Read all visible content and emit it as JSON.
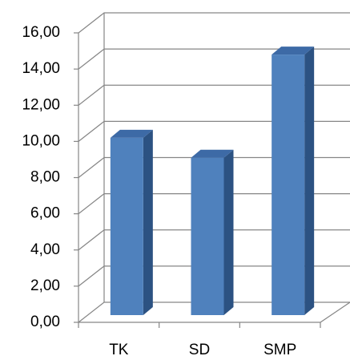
{
  "chart_data": {
    "type": "bar3d",
    "categories": [
      "TK",
      "SD",
      "SMP"
    ],
    "values": [
      9.8,
      8.7,
      14.4
    ],
    "color": "#4f81bd",
    "ylim": [
      0,
      16
    ],
    "yticks": [
      {
        "value": 0,
        "label": "0,00"
      },
      {
        "value": 2,
        "label": "2,00"
      },
      {
        "value": 4,
        "label": "4,00"
      },
      {
        "value": 6,
        "label": "6,00"
      },
      {
        "value": 8,
        "label": "8,00"
      },
      {
        "value": 10,
        "label": "10,00"
      },
      {
        "value": 12,
        "label": "12,00"
      },
      {
        "value": 14,
        "label": "14,00"
      },
      {
        "value": 16,
        "label": "16,00"
      }
    ],
    "grid": true
  }
}
